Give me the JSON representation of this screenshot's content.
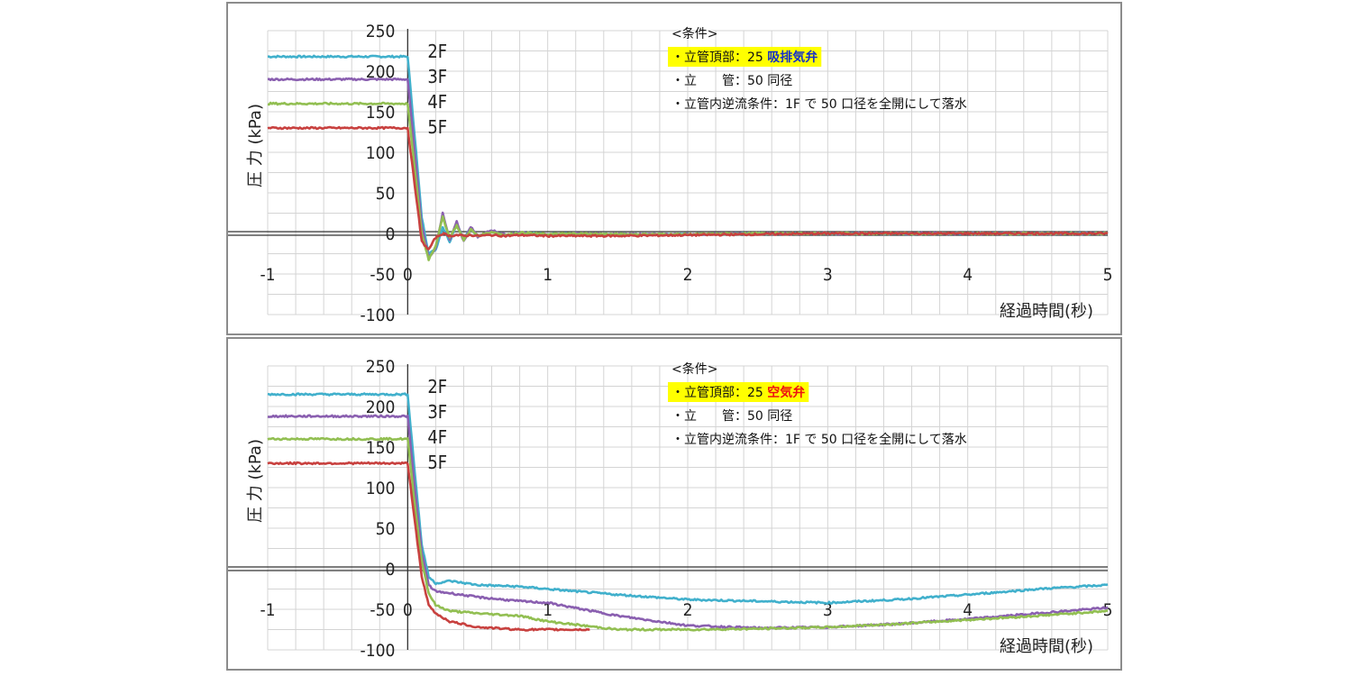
{
  "chart_data": [
    {
      "type": "line",
      "ylabel": "圧 力 (kPa)",
      "xlabel": "経過時間(秒)",
      "xlim": [
        -1,
        5
      ],
      "ylim": [
        -100,
        250
      ],
      "xticks": [
        "-1",
        "0",
        "1",
        "2",
        "3",
        "4",
        "5"
      ],
      "yticks": [
        "250",
        "200",
        "150",
        "100",
        "50",
        "0",
        "-50",
        "-100"
      ],
      "conditions": {
        "heading": "<条件>",
        "highlight_prefix": "・立管頂部：25 ",
        "highlight_valve": "吸排気弁",
        "line2": "・立　　管：50 同径",
        "line3": "・立管内逆流条件：1F で 50 口径を全開にして落水"
      },
      "series": [
        {
          "name": "2F",
          "color": "#41b0cc",
          "x": [
            -1,
            0,
            0.05,
            0.1,
            0.15,
            0.2,
            0.25,
            0.3,
            0.35,
            0.4,
            0.45,
            0.5,
            0.6,
            0.7,
            0.8,
            1.0,
            1.2,
            1.5,
            2.0,
            2.5,
            3,
            4,
            5
          ],
          "y": [
            218,
            218,
            120,
            20,
            -25,
            -20,
            8,
            -10,
            12,
            -6,
            6,
            -3,
            3,
            -3,
            1,
            -1,
            0,
            -1,
            -1,
            0,
            0,
            0,
            0
          ]
        },
        {
          "name": "3F",
          "color": "#8a5fb0",
          "x": [
            -1,
            0,
            0.05,
            0.1,
            0.15,
            0.2,
            0.25,
            0.3,
            0.35,
            0.4,
            0.45,
            0.5,
            0.6,
            0.7,
            0.8,
            1.0,
            1.2,
            1.5,
            2.0,
            2.5,
            3,
            4,
            5
          ],
          "y": [
            190,
            190,
            100,
            10,
            -30,
            -18,
            25,
            -8,
            15,
            -10,
            8,
            -4,
            4,
            -2,
            1,
            -2,
            0,
            -1,
            -1,
            0,
            0,
            0,
            0
          ]
        },
        {
          "name": "4F",
          "color": "#92bf52",
          "x": [
            -1,
            0,
            0.05,
            0.1,
            0.15,
            0.2,
            0.25,
            0.3,
            0.35,
            0.4,
            0.45,
            0.5,
            0.6,
            0.7,
            0.8,
            1.0,
            1.2,
            1.5,
            2.0,
            2.5,
            3,
            4,
            5
          ],
          "y": [
            160,
            160,
            80,
            0,
            -32,
            -15,
            20,
            -5,
            10,
            -8,
            5,
            -3,
            2,
            -2,
            1,
            -1,
            0,
            -1,
            -1,
            0,
            0,
            0,
            0
          ]
        },
        {
          "name": "5F",
          "color": "#c8413f",
          "x": [
            -1,
            0,
            0.05,
            0.1,
            0.15,
            0.2,
            0.25,
            0.3,
            0.35,
            0.4,
            0.45,
            0.5,
            0.6,
            0.7,
            0.8,
            1.0,
            1.2,
            1.5,
            2.0,
            2.5,
            3,
            4,
            5
          ],
          "y": [
            130,
            130,
            60,
            -10,
            -20,
            -5,
            0,
            -3,
            -2,
            -3,
            -2,
            -3,
            -2,
            -3,
            -2,
            -3,
            -3,
            -3,
            -2,
            -1,
            0,
            0,
            0
          ]
        }
      ]
    },
    {
      "type": "line",
      "ylabel": "圧 力 (kPa)",
      "xlabel": "経過時間(秒)",
      "xlim": [
        -1,
        5
      ],
      "ylim": [
        -100,
        250
      ],
      "xticks": [
        "-1",
        "0",
        "1",
        "2",
        "3",
        "4",
        "5"
      ],
      "yticks": [
        "250",
        "200",
        "150",
        "100",
        "50",
        "0",
        "-50",
        "-100"
      ],
      "conditions": {
        "heading": "<条件>",
        "highlight_prefix": "・立管頂部：25 ",
        "highlight_valve": "空気弁",
        "line2": "・立　　管：50 同径",
        "line3": "・立管内逆流条件：1F で 50 口径を全開にして落水"
      },
      "series": [
        {
          "name": "2F",
          "color": "#41b0cc",
          "x": [
            -1,
            0,
            0.05,
            0.1,
            0.15,
            0.2,
            0.3,
            0.5,
            0.8,
            1.0,
            1.5,
            2.0,
            2.5,
            3.0,
            3.5,
            4.0,
            4.5,
            5.0
          ],
          "y": [
            215,
            215,
            120,
            30,
            -10,
            -18,
            -15,
            -20,
            -22,
            -25,
            -32,
            -38,
            -40,
            -42,
            -38,
            -32,
            -25,
            -20
          ]
        },
        {
          "name": "3F",
          "color": "#8a5fb0",
          "x": [
            -1,
            0,
            0.05,
            0.1,
            0.15,
            0.2,
            0.3,
            0.5,
            0.8,
            1.0,
            1.5,
            2.0,
            2.5,
            3.0,
            3.5,
            4.0,
            4.5,
            5.0
          ],
          "y": [
            188,
            188,
            100,
            20,
            -20,
            -28,
            -30,
            -35,
            -40,
            -42,
            -58,
            -70,
            -73,
            -72,
            -68,
            -62,
            -55,
            -48
          ]
        },
        {
          "name": "4F",
          "color": "#92bf52",
          "x": [
            -1,
            0,
            0.05,
            0.1,
            0.15,
            0.2,
            0.3,
            0.5,
            0.8,
            1.0,
            1.5,
            2.0,
            2.5,
            3.0,
            3.5,
            4.0,
            4.5,
            5.0
          ],
          "y": [
            160,
            160,
            80,
            10,
            -30,
            -45,
            -52,
            -55,
            -58,
            -65,
            -75,
            -75,
            -74,
            -72,
            -68,
            -63,
            -58,
            -52
          ]
        },
        {
          "name": "5F",
          "color": "#c8413f",
          "x": [
            -1,
            0,
            0.05,
            0.1,
            0.15,
            0.2,
            0.3,
            0.5,
            0.8,
            1.0,
            1.3
          ],
          "y": [
            130,
            130,
            60,
            -10,
            -45,
            -55,
            -65,
            -72,
            -75,
            -75,
            -75
          ]
        }
      ]
    }
  ],
  "colors": {
    "highlight_bg": "#ffff00",
    "valve_top": "#1530c8",
    "valve_bottom": "#ee1111",
    "grid": "#d4d4d4",
    "axis": "#333333"
  }
}
